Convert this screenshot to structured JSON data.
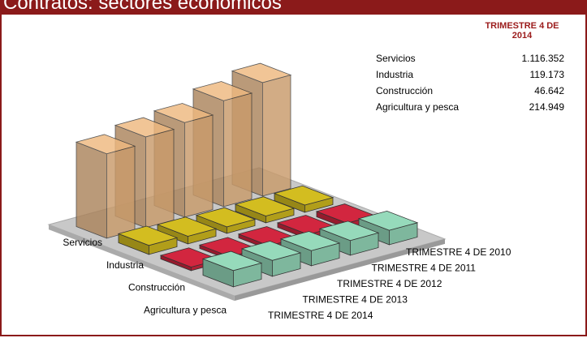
{
  "chart_data": {
    "type": "bar3d",
    "title": "Contratos: sectores económicos",
    "categories": [
      "Servicios",
      "Industria",
      "Construcción",
      "Agricultura y pesca"
    ],
    "colors": [
      "#e4b07a",
      "#c9b41e",
      "#c8243c",
      "#8fd0b2"
    ],
    "series": [
      {
        "name": "TRIMESTRE 4 DE 2010",
        "values": [
          1500000,
          95000,
          70000,
          190000
        ]
      },
      {
        "name": "TRIMESTRE 4 DE 2011",
        "values": [
          1400000,
          90000,
          60000,
          195000
        ]
      },
      {
        "name": "TRIMESTRE 4 DE 2012",
        "values": [
          1250000,
          85000,
          50000,
          200000
        ]
      },
      {
        "name": "TRIMESTRE 4 DE 2013",
        "values": [
          1200000,
          100000,
          45000,
          210000
        ]
      },
      {
        "name": "TRIMESTRE 4 DE 2014",
        "values": [
          1116352,
          119173,
          46642,
          214949
        ],
        "value_labels": [
          "1.116.352",
          "119.173",
          "46.642",
          "214.949"
        ]
      }
    ]
  }
}
